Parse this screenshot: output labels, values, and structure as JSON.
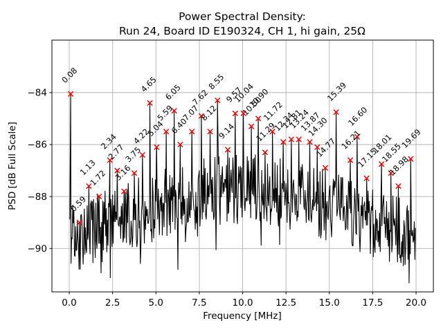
{
  "chart_data": {
    "type": "line",
    "title": "Power Spectral Density:",
    "subtitle": "Run 24, Board ID E190324, CH 1, hi gain, 25Ω",
    "xlabel": "Frequency [MHz]",
    "ylabel": "PSD [dB Full Scale]",
    "xlim": [
      -1,
      21
    ],
    "ylim": [
      -91.67,
      -81.98
    ],
    "xticks": [
      0,
      2.5,
      5,
      7.5,
      10,
      12.5,
      15,
      17.5,
      20
    ],
    "xtick_labels": [
      "0.0",
      "2.5",
      "5.0",
      "7.5",
      "10.0",
      "12.5",
      "15.0",
      "17.5",
      "20.0"
    ],
    "yticks": [
      -84,
      -86,
      -88,
      -90
    ],
    "ytick_labels": [
      "−84",
      "−86",
      "−88",
      "−90"
    ],
    "grid": true,
    "grid_color": "#b0b0b0",
    "line_color": "#000000",
    "marker_color": "#ff0000",
    "marker_style": "x",
    "annotation_rotation_deg": 45,
    "noise_floor": {
      "description": "dense random noise baseline under the labeled peaks",
      "seed": 987654321,
      "n_points": 600,
      "f_start": 0.0333,
      "f_end": 20.0,
      "center_low_db": -89.55,
      "center_midband_boost_db": 1.85,
      "jitter_db": 1.35,
      "dip_probability": 0.09,
      "dip_extra_db": 1.5,
      "clamp_min_db": -91.33,
      "clamp_max_db": -86.05
    },
    "peaks": [
      {
        "f": 0.08,
        "db": -84.05,
        "label": "0.08"
      },
      {
        "f": 0.59,
        "db": -89.0,
        "label": "0.59"
      },
      {
        "f": 1.13,
        "db": -87.6,
        "label": "1.13"
      },
      {
        "f": 1.72,
        "db": -88.0,
        "label": "1.72"
      },
      {
        "f": 2.34,
        "db": -86.6,
        "label": "2.34"
      },
      {
        "f": 2.77,
        "db": -87.0,
        "label": "2.77"
      },
      {
        "f": 3.16,
        "db": -87.8,
        "label": "3.16"
      },
      {
        "f": 3.75,
        "db": -87.1,
        "label": "3.75"
      },
      {
        "f": 4.22,
        "db": -86.4,
        "label": "4.22"
      },
      {
        "f": 4.65,
        "db": -84.4,
        "label": "4.65"
      },
      {
        "f": 5.04,
        "db": -86.1,
        "label": "5.04"
      },
      {
        "f": 5.59,
        "db": -85.5,
        "label": "5.59"
      },
      {
        "f": 6.05,
        "db": -84.7,
        "label": "6.05"
      },
      {
        "f": 6.4,
        "db": -86.0,
        "label": "6.40"
      },
      {
        "f": 7.07,
        "db": -85.5,
        "label": "7.07"
      },
      {
        "f": 7.62,
        "db": -84.9,
        "label": "7.62"
      },
      {
        "f": 8.12,
        "db": -85.5,
        "label": "8.12"
      },
      {
        "f": 8.55,
        "db": -84.3,
        "label": "8.55"
      },
      {
        "f": 9.14,
        "db": -86.2,
        "label": "9.14"
      },
      {
        "f": 9.57,
        "db": -84.8,
        "label": "9.57"
      },
      {
        "f": 10.04,
        "db": -84.8,
        "label": "10.04"
      },
      {
        "f": 10.5,
        "db": -85.3,
        "label": "10.50"
      },
      {
        "f": 10.9,
        "db": -85.0,
        "label": "10.90"
      },
      {
        "f": 11.29,
        "db": -86.3,
        "label": "11.29"
      },
      {
        "f": 11.72,
        "db": -85.5,
        "label": "11.72"
      },
      {
        "f": 12.34,
        "db": -85.9,
        "label": "12.34"
      },
      {
        "f": 12.81,
        "db": -85.8,
        "label": "12.81"
      },
      {
        "f": 13.24,
        "db": -85.8,
        "label": "13.24"
      },
      {
        "f": 13.87,
        "db": -85.9,
        "label": "13.87"
      },
      {
        "f": 14.3,
        "db": -86.1,
        "label": "14.30"
      },
      {
        "f": 14.77,
        "db": -86.9,
        "label": "14.77"
      },
      {
        "f": 15.39,
        "db": -84.75,
        "label": "15.39"
      },
      {
        "f": 16.21,
        "db": -86.6,
        "label": "16.21"
      },
      {
        "f": 16.6,
        "db": -85.7,
        "label": "16.60"
      },
      {
        "f": 17.15,
        "db": -87.3,
        "label": "17.15"
      },
      {
        "f": 18.01,
        "db": -86.75,
        "label": "18.01"
      },
      {
        "f": 18.55,
        "db": -87.1,
        "label": "18.55"
      },
      {
        "f": 18.98,
        "db": -87.6,
        "label": "18.98"
      },
      {
        "f": 19.69,
        "db": -86.55,
        "label": "19.69"
      }
    ]
  }
}
